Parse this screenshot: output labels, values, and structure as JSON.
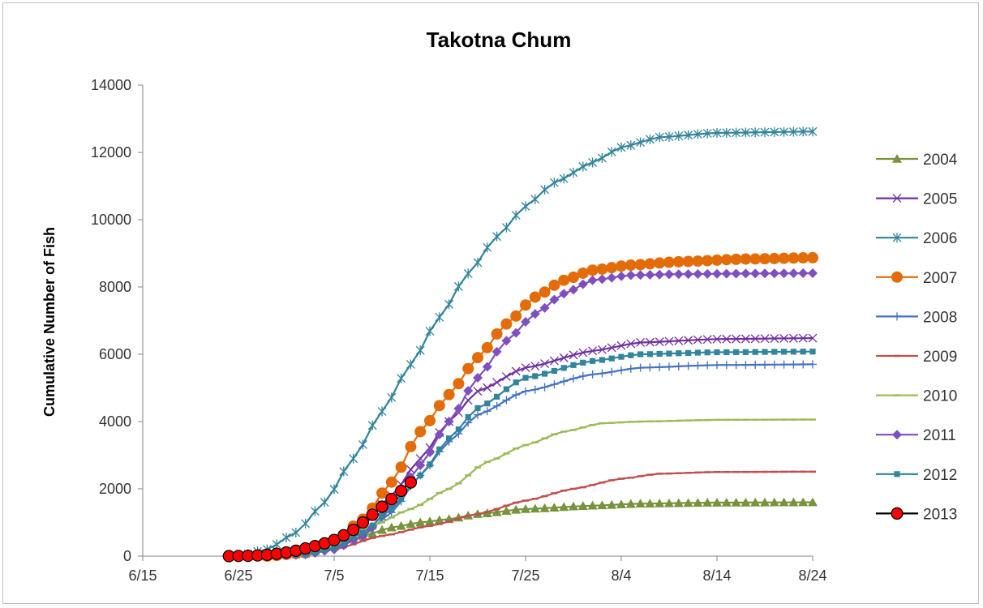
{
  "chart_data": {
    "type": "line",
    "title": "Takotna Chum",
    "xlabel": "",
    "ylabel": "Cumulative Number of Fish",
    "x_tick_labels": [
      "6/15",
      "6/25",
      "7/5",
      "7/15",
      "7/25",
      "8/4",
      "8/14",
      "8/24"
    ],
    "y_tick_labels": [
      "0",
      "2000",
      "4000",
      "6000",
      "8000",
      "10000",
      "12000",
      "14000"
    ],
    "ylim": [
      0,
      14000
    ],
    "xlim": [
      "6/15",
      "8/24"
    ],
    "grid": false,
    "legend_position": "right",
    "series": [
      {
        "name": "2004",
        "color": "#77933c",
        "marker": "triangle",
        "x": [
          "6/28",
          "7/2",
          "7/5",
          "7/8",
          "7/11",
          "7/14",
          "7/17",
          "7/20",
          "7/25",
          "8/1",
          "8/6",
          "8/14",
          "8/24"
        ],
        "y": [
          0,
          100,
          300,
          600,
          850,
          1000,
          1100,
          1250,
          1400,
          1500,
          1560,
          1590,
          1600
        ]
      },
      {
        "name": "2005",
        "color": "#7030a0",
        "marker": "x",
        "x": [
          "6/28",
          "7/2",
          "7/5",
          "7/8",
          "7/11",
          "7/14",
          "7/17",
          "7/20",
          "7/25",
          "8/1",
          "8/6",
          "8/14",
          "8/24"
        ],
        "y": [
          0,
          80,
          350,
          900,
          1800,
          2900,
          4000,
          4900,
          5600,
          6100,
          6350,
          6450,
          6480
        ]
      },
      {
        "name": "2006",
        "color": "#31859c",
        "marker": "star",
        "x": [
          "6/25",
          "6/28",
          "7/1",
          "7/4",
          "7/7",
          "7/10",
          "7/13",
          "7/16",
          "7/19",
          "7/22",
          "7/25",
          "7/28",
          "8/1",
          "8/4",
          "8/8",
          "8/14",
          "8/24"
        ],
        "y": [
          0,
          200,
          700,
          1600,
          2900,
          4300,
          5700,
          7100,
          8400,
          9500,
          10400,
          11100,
          11700,
          12150,
          12450,
          12580,
          12620
        ]
      },
      {
        "name": "2007",
        "color": "#e36c09",
        "marker": "circle",
        "x": [
          "6/28",
          "7/2",
          "7/5",
          "7/8",
          "7/11",
          "7/14",
          "7/17",
          "7/20",
          "7/23",
          "7/26",
          "7/29",
          "8/1",
          "8/5",
          "8/10",
          "8/17",
          "8/24"
        ],
        "y": [
          0,
          100,
          400,
          1100,
          2200,
          3700,
          4800,
          5900,
          6900,
          7700,
          8200,
          8500,
          8650,
          8750,
          8830,
          8870
        ]
      },
      {
        "name": "2008",
        "color": "#4472c4",
        "marker": "plus",
        "x": [
          "6/28",
          "7/2",
          "7/5",
          "7/8",
          "7/11",
          "7/14",
          "7/17",
          "7/20",
          "7/25",
          "8/1",
          "8/6",
          "8/14",
          "8/24"
        ],
        "y": [
          0,
          50,
          200,
          600,
          1300,
          2400,
          3400,
          4200,
          4900,
          5400,
          5600,
          5680,
          5700
        ]
      },
      {
        "name": "2009",
        "color": "#c0504d",
        "marker": "dash",
        "x": [
          "6/28",
          "7/2",
          "7/5",
          "7/10",
          "7/15",
          "7/20",
          "7/25",
          "7/30",
          "8/4",
          "8/8",
          "8/14",
          "8/24"
        ],
        "y": [
          0,
          50,
          200,
          600,
          900,
          1250,
          1650,
          2000,
          2300,
          2450,
          2500,
          2510
        ]
      },
      {
        "name": "2010",
        "color": "#9bbb59",
        "marker": "dash",
        "x": [
          "6/28",
          "7/2",
          "7/5",
          "7/9",
          "7/13",
          "7/17",
          "7/21",
          "7/25",
          "7/29",
          "8/2",
          "8/6",
          "8/14",
          "8/24"
        ],
        "y": [
          0,
          80,
          300,
          900,
          1400,
          2000,
          2800,
          3300,
          3700,
          3950,
          4000,
          4050,
          4060
        ]
      },
      {
        "name": "2011",
        "color": "#7f4fbf",
        "marker": "diamond",
        "x": [
          "6/28",
          "7/2",
          "7/5",
          "7/8",
          "7/11",
          "7/14",
          "7/17",
          "7/20",
          "7/23",
          "7/26",
          "7/29",
          "8/1",
          "8/5",
          "8/10",
          "8/17",
          "8/24"
        ],
        "y": [
          0,
          50,
          200,
          600,
          1500,
          2700,
          4000,
          5300,
          6400,
          7200,
          7800,
          8200,
          8350,
          8380,
          8400,
          8410
        ]
      },
      {
        "name": "2012",
        "color": "#31859c",
        "marker": "square",
        "x": [
          "6/28",
          "7/2",
          "7/5",
          "7/8",
          "7/11",
          "7/14",
          "7/17",
          "7/20",
          "7/25",
          "8/1",
          "8/6",
          "8/14",
          "8/24"
        ],
        "y": [
          0,
          50,
          250,
          700,
          1400,
          2400,
          3500,
          4400,
          5300,
          5800,
          6000,
          6060,
          6080
        ]
      },
      {
        "name": "2013",
        "color": "#000000",
        "marker_fill": "#ff0000",
        "marker": "circle",
        "x": [
          "6/24",
          "6/25",
          "6/26",
          "6/27",
          "6/28",
          "6/29",
          "6/30",
          "7/1",
          "7/2",
          "7/3",
          "7/4",
          "7/5",
          "7/6",
          "7/7",
          "7/8",
          "7/9",
          "7/10",
          "7/11",
          "7/12",
          "7/13"
        ],
        "y": [
          0,
          5,
          10,
          20,
          40,
          70,
          110,
          160,
          230,
          300,
          380,
          480,
          620,
          780,
          1000,
          1230,
          1470,
          1700,
          1940,
          2190
        ]
      }
    ]
  }
}
